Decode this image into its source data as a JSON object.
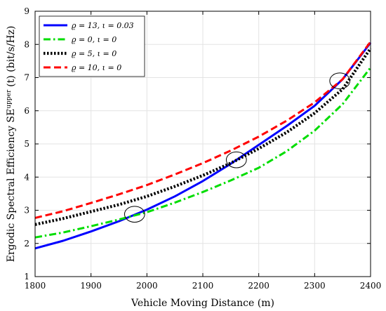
{
  "chart_data": {
    "type": "line",
    "xlabel": "Vehicle Moving Distance (m)",
    "ylabel": "Ergodic Spectral Efficiency SE",
    "ylabel_sup": "upper",
    "ylabel_tail": "(t)  (bit/s/Hz)",
    "xlim": [
      1800,
      2400
    ],
    "ylim": [
      1,
      9
    ],
    "xticks": [
      1800,
      1900,
      2000,
      2100,
      2200,
      2300,
      2400
    ],
    "yticks": [
      1,
      2,
      3,
      4,
      5,
      6,
      7,
      8,
      9
    ],
    "grid": true,
    "legend_position": "top-left",
    "x": [
      1800,
      1850,
      1900,
      1950,
      2000,
      2050,
      2100,
      2150,
      2200,
      2250,
      2300,
      2350,
      2400
    ],
    "series": [
      {
        "name": "ϱ = 13, ι = 0.03",
        "color": "#0000ff",
        "style": "solid",
        "values": [
          1.85,
          2.08,
          2.36,
          2.67,
          3.02,
          3.42,
          3.88,
          4.4,
          4.97,
          5.54,
          6.15,
          6.95,
          8.05
        ]
      },
      {
        "name": "ϱ = 0, ι = 0",
        "color": "#00dd00",
        "style": "dashdot",
        "values": [
          2.18,
          2.33,
          2.52,
          2.72,
          2.94,
          3.23,
          3.55,
          3.9,
          4.28,
          4.78,
          5.4,
          6.2,
          7.3
        ]
      },
      {
        "name": "ϱ = 5, ι = 0",
        "color": "#000000",
        "style": "dotted",
        "values": [
          2.57,
          2.75,
          2.96,
          3.17,
          3.42,
          3.72,
          4.05,
          4.42,
          4.86,
          5.35,
          5.93,
          6.65,
          7.88
        ]
      },
      {
        "name": "ϱ = 10, ι = 0",
        "color": "#ff0000",
        "style": "dashed",
        "values": [
          2.77,
          2.97,
          3.22,
          3.48,
          3.76,
          4.08,
          4.42,
          4.8,
          5.22,
          5.7,
          6.25,
          6.95,
          8.08
        ]
      }
    ],
    "annotations": [
      {
        "type": "ellipse",
        "cx": 1978,
        "cy": 2.88,
        "rx": 18,
        "ry": 0.24
      },
      {
        "type": "ellipse",
        "cx": 2160,
        "cy": 4.52,
        "rx": 18,
        "ry": 0.24
      },
      {
        "type": "ellipse",
        "cx": 2345,
        "cy": 6.9,
        "rx": 18,
        "ry": 0.24
      }
    ]
  }
}
